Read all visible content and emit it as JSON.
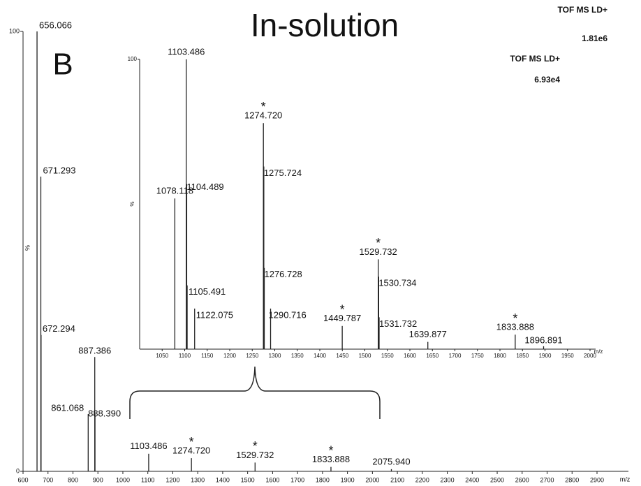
{
  "chart_data": [
    {
      "type": "bar",
      "title": "In-solution",
      "panel_label": "B",
      "instrument": "TOF MS LD+",
      "intensity_label": "1.81e6",
      "x_label": "m/z",
      "y_label": "%",
      "xlim": [
        600,
        2900
      ],
      "xticks": [
        600,
        700,
        800,
        900,
        1000,
        1100,
        1200,
        1300,
        1400,
        1500,
        1600,
        1700,
        1800,
        1900,
        2000,
        2100,
        2200,
        2300,
        2400,
        2500,
        2600,
        2700,
        2800,
        2900
      ],
      "ylim": [
        0,
        100
      ],
      "yticks": [
        0,
        100
      ],
      "x": [
        656.066,
        671.293,
        672.294,
        861.068,
        887.386,
        888.39,
        1103.486,
        1274.72,
        1529.732,
        1833.888,
        2075.94
      ],
      "x_labels": [
        "656.066",
        "671.293",
        "672.294",
        "861.068",
        "887.386",
        "888.390",
        "1103.486",
        "1274.720",
        "1529.732",
        "1833.888",
        "2075.940"
      ],
      "values": [
        100,
        67,
        31,
        13,
        26,
        13,
        4,
        3,
        2,
        1,
        0.5
      ],
      "annotations": [
        {
          "text": "*",
          "x": 1274.72
        },
        {
          "text": "*",
          "x": 1529.732
        },
        {
          "text": "*",
          "x": 1833.888
        }
      ]
    },
    {
      "type": "bar",
      "instrument": "TOF MS LD+",
      "intensity_label": "6.93e4",
      "x_label": "m/z",
      "y_label": "%",
      "xlim": [
        1000,
        2000
      ],
      "xticks": [
        1050,
        1100,
        1150,
        1200,
        1250,
        1300,
        1350,
        1400,
        1450,
        1500,
        1550,
        1600,
        1650,
        1700,
        1750,
        1800,
        1850,
        1900,
        1950,
        2000
      ],
      "ylim": [
        0,
        100
      ],
      "yticks": [
        100
      ],
      "x": [
        1078.118,
        1103.486,
        1104.489,
        1105.491,
        1122.075,
        1274.72,
        1275.724,
        1276.728,
        1290.716,
        1449.787,
        1529.732,
        1530.734,
        1531.732,
        1639.877,
        1833.888,
        1896.891
      ],
      "x_labels": [
        "1078.118",
        "1103.486",
        "1104.489",
        "1105.491",
        "1122.075",
        "1274.720",
        "1275.724",
        "1276.728",
        "1290.716",
        "1449.787",
        "1529.732",
        "1530.734",
        "1531.732",
        "1639.877",
        "1833.888",
        "1896.891"
      ],
      "values": [
        52,
        100,
        57,
        22,
        14,
        78,
        63,
        28,
        14,
        8,
        31,
        25,
        11,
        2.5,
        5,
        1
      ],
      "annotations": [
        {
          "text": "*",
          "x": 1274.72
        },
        {
          "text": "*",
          "x": 1449.787
        },
        {
          "text": "*",
          "x": 1529.732
        },
        {
          "text": "*",
          "x": 1833.888
        }
      ]
    }
  ]
}
